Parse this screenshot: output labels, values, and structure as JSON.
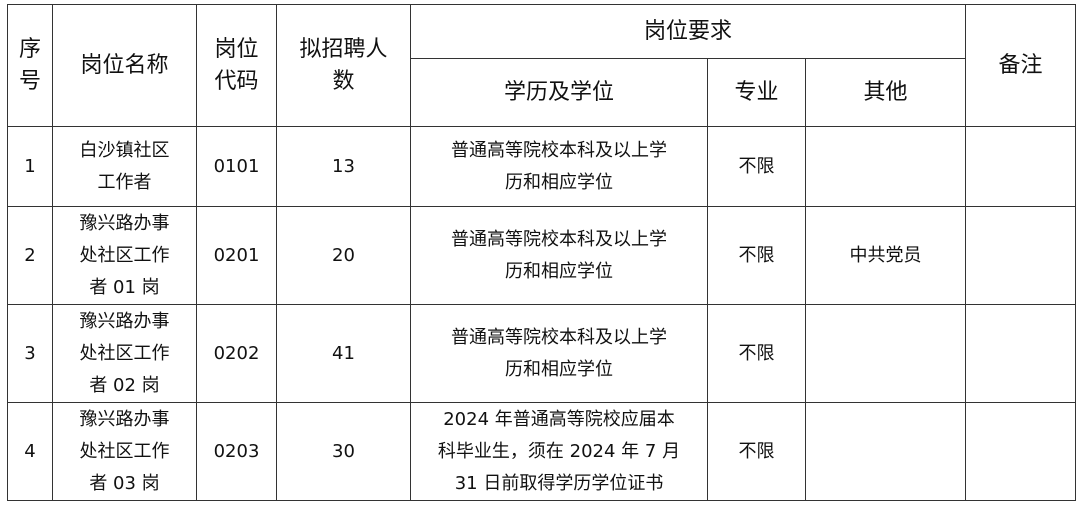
{
  "headers": {
    "seq": [
      "序",
      "号"
    ],
    "name": "岗位名称",
    "code": [
      "岗位",
      "代码"
    ],
    "count": [
      "拟招聘人",
      "数"
    ],
    "requirements": "岗位要求",
    "education": "学历及学位",
    "major": "专业",
    "other": "其他",
    "remarks": "备注"
  },
  "rows": [
    {
      "seq": "1",
      "name": [
        "白沙镇社区",
        "工作者"
      ],
      "code": "0101",
      "count": "13",
      "education": [
        "普通高等院校本科及以上学",
        "历和相应学位"
      ],
      "major": "不限",
      "other": "",
      "remarks": ""
    },
    {
      "seq": "2",
      "name": [
        "豫兴路办事",
        "处社区工作",
        "者 01 岗"
      ],
      "code": "0201",
      "count": "20",
      "education": [
        "普通高等院校本科及以上学",
        "历和相应学位"
      ],
      "major": "不限",
      "other": "中共党员",
      "remarks": ""
    },
    {
      "seq": "3",
      "name": [
        "豫兴路办事",
        "处社区工作",
        "者 02 岗"
      ],
      "code": "0202",
      "count": "41",
      "education": [
        "普通高等院校本科及以上学",
        "历和相应学位"
      ],
      "major": "不限",
      "other": "",
      "remarks": ""
    },
    {
      "seq": "4",
      "name": [
        "豫兴路办事",
        "处社区工作",
        "者 03 岗"
      ],
      "code": "0203",
      "count": "30",
      "education": [
        "2024 年普通高等院校应届本",
        "科毕业生，须在 2024 年 7 月",
        "31 日前取得学历学位证书"
      ],
      "major": "不限",
      "other": "",
      "remarks": ""
    }
  ]
}
